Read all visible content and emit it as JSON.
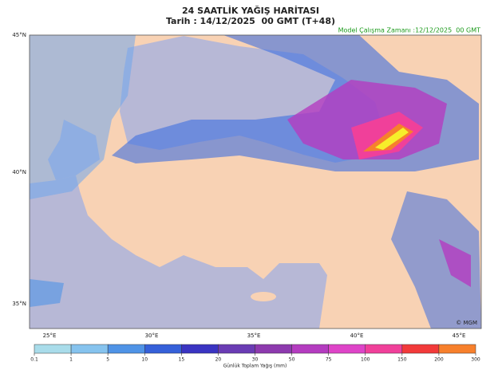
{
  "header": {
    "title": "24 SAATLİK YAĞIŞ HARİTASI",
    "subtitle": "Tarih : 14/12/2025  00 GMT (T+48)",
    "model_time": "Model Çalışma Zamanı :12/12/2025  00 GMT"
  },
  "map": {
    "lat_labels": [
      "45°N",
      "40°N",
      "35°N"
    ],
    "lon_labels": [
      "25°E",
      "30°E",
      "35°E",
      "40°E",
      "45°E"
    ],
    "credit": "© MGM"
  },
  "colorbar": {
    "ticks": [
      0.1,
      1,
      5,
      10,
      15,
      20,
      30,
      50,
      75,
      100,
      150,
      200,
      300
    ],
    "colors": [
      "#a9dcea",
      "#86c3ee",
      "#4f93e6",
      "#3560d9",
      "#3a34c2",
      "#6a3cb4",
      "#8d3aae",
      "#b43cc0",
      "#de44c8",
      "#f0409a",
      "#f23a3a",
      "#f7802c",
      "#f6ef2a"
    ],
    "label": "Günlük Toplam Yağış (mm)"
  }
}
